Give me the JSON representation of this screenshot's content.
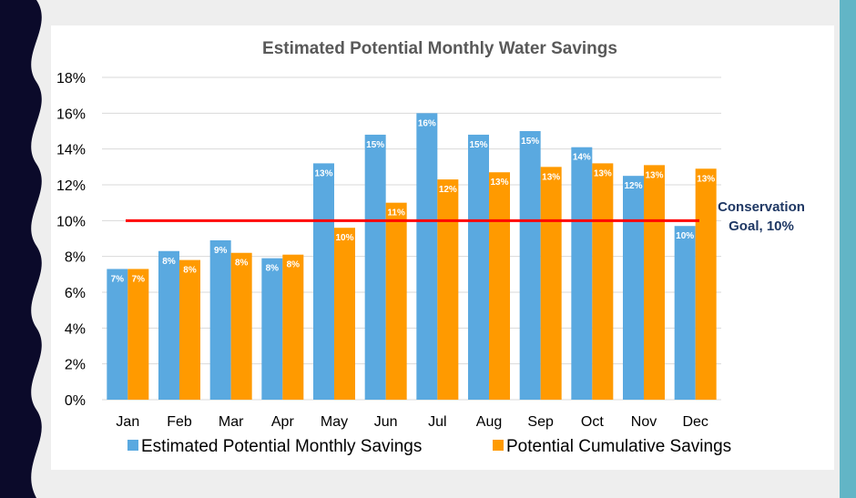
{
  "chart_data": {
    "type": "bar",
    "title": "Estimated Potential Monthly Water Savings",
    "categories": [
      "Jan",
      "Feb",
      "Mar",
      "Apr",
      "May",
      "Jun",
      "Jul",
      "Aug",
      "Sep",
      "Oct",
      "Nov",
      "Dec"
    ],
    "series": [
      {
        "name": "Estimated Potential Monthly Savings",
        "color": "#5aa9e0",
        "values": [
          7.3,
          8.3,
          8.9,
          7.9,
          13.2,
          14.8,
          16.0,
          14.8,
          15.0,
          14.1,
          12.5,
          9.7
        ],
        "labels": [
          "7%",
          "8%",
          "9%",
          "8%",
          "13%",
          "15%",
          "16%",
          "15%",
          "15%",
          "14%",
          "12%",
          "10%"
        ]
      },
      {
        "name": "Potential Cumulative Savings",
        "color": "#ff9a00",
        "values": [
          7.3,
          7.8,
          8.2,
          8.1,
          9.6,
          11.0,
          12.3,
          12.7,
          13.0,
          13.2,
          13.1,
          12.9
        ],
        "labels": [
          "7%",
          "8%",
          "8%",
          "8%",
          "10%",
          "11%",
          "12%",
          "13%",
          "13%",
          "13%",
          "13%",
          "13%"
        ]
      }
    ],
    "ylim": [
      0,
      18
    ],
    "yticks": [
      "0%",
      "2%",
      "4%",
      "6%",
      "8%",
      "10%",
      "12%",
      "14%",
      "16%",
      "18%"
    ],
    "grid": true,
    "legend": "bottom",
    "goal": {
      "value": 10,
      "label_line1": "Conservation",
      "label_line2": "Goal, 10%",
      "color": "#ff0000"
    }
  }
}
